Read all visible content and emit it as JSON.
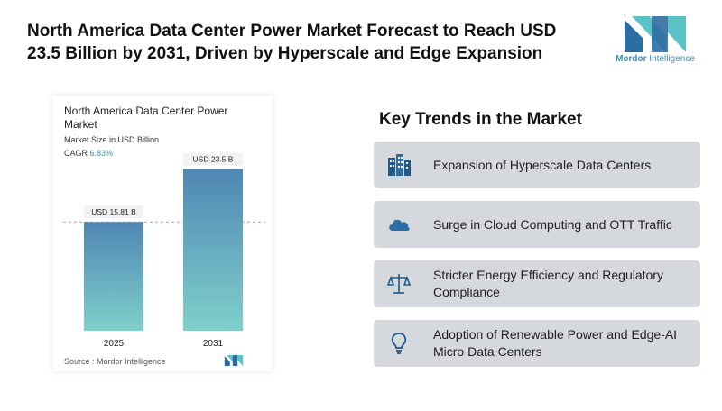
{
  "headline": "North America Data Center Power Market Forecast to Reach USD 23.5 Billion by 2031, Driven by Hyperscale and Edge Expansion",
  "brand": {
    "name_bold": "Mordor",
    "name_rest": " Intelligence",
    "color": "#3a8fb7"
  },
  "chart": {
    "title": "North America Data Center Power Market",
    "subtitle": "Market Size in USD Billion",
    "cagr_label": "CAGR",
    "cagr_value": "6.83%",
    "source": "Source :  Mordor Intelligence"
  },
  "chart_data": {
    "type": "bar",
    "categories": [
      "2025",
      "2031"
    ],
    "values": [
      15.81,
      23.5
    ],
    "data_labels": [
      "USD 15.81 B",
      "USD 23.5 B"
    ],
    "ylim": [
      0,
      25
    ],
    "reference_line_value": 15.81,
    "grid": false,
    "bar_color_top": "#4f87b3",
    "bar_color_bottom": "#7fd0cc"
  },
  "trends": {
    "title": "Key Trends in the Market",
    "items": [
      {
        "icon": "building-icon",
        "label": "Expansion of Hyperscale Data Centers"
      },
      {
        "icon": "cloud-icon",
        "label": "Surge in Cloud Computing and OTT Traffic"
      },
      {
        "icon": "scales-icon",
        "label": "Stricter Energy Efficiency and Regulatory Compliance"
      },
      {
        "icon": "lightbulb-icon",
        "label": "Adoption of Renewable Power and Edge-AI Micro Data Centers"
      }
    ]
  }
}
